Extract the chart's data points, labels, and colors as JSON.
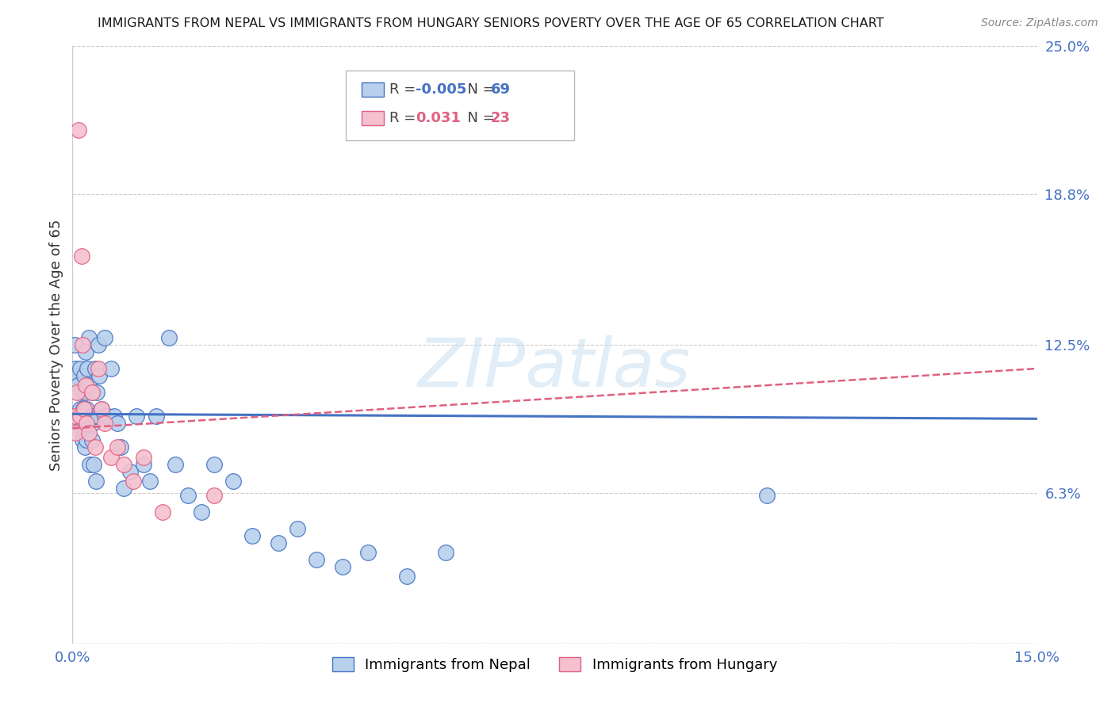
{
  "title": "IMMIGRANTS FROM NEPAL VS IMMIGRANTS FROM HUNGARY SENIORS POVERTY OVER THE AGE OF 65 CORRELATION CHART",
  "source": "Source: ZipAtlas.com",
  "ylabel": "Seniors Poverty Over the Age of 65",
  "legend_label1": "Immigrants from Nepal",
  "legend_label2": "Immigrants from Hungary",
  "R1": "-0.005",
  "N1": "69",
  "R2": "0.031",
  "N2": "23",
  "color1": "#b8d0eb",
  "color2": "#f5c0d0",
  "line_color1": "#4472c4",
  "line_color2": "#e06080",
  "xmin": 0.0,
  "xmax": 0.15,
  "ymin": 0.0,
  "ymax": 0.25,
  "yticks": [
    0.0,
    0.063,
    0.125,
    0.188,
    0.25
  ],
  "ytick_labels": [
    "",
    "6.3%",
    "12.5%",
    "18.8%",
    "25.0%"
  ],
  "xticks": [
    0.0,
    0.025,
    0.05,
    0.075,
    0.1,
    0.125,
    0.15
  ],
  "xtick_labels": [
    "0.0%",
    "",
    "",
    "",
    "",
    "",
    "15.0%"
  ],
  "nepal_x": [
    0.0003,
    0.0005,
    0.0006,
    0.0008,
    0.001,
    0.001,
    0.0012,
    0.0012,
    0.0014,
    0.0015,
    0.0015,
    0.0016,
    0.0016,
    0.0017,
    0.0018,
    0.0018,
    0.0019,
    0.002,
    0.002,
    0.002,
    0.0021,
    0.0022,
    0.0022,
    0.0023,
    0.0024,
    0.0025,
    0.0026,
    0.0027,
    0.0028,
    0.003,
    0.003,
    0.0032,
    0.0033,
    0.0034,
    0.0035,
    0.0036,
    0.0038,
    0.004,
    0.004,
    0.0042,
    0.0045,
    0.005,
    0.005,
    0.0055,
    0.006,
    0.0065,
    0.007,
    0.0075,
    0.008,
    0.009,
    0.01,
    0.011,
    0.012,
    0.013,
    0.015,
    0.016,
    0.018,
    0.02,
    0.022,
    0.025,
    0.028,
    0.032,
    0.035,
    0.038,
    0.042,
    0.046,
    0.052,
    0.058,
    0.108
  ],
  "nepal_y": [
    0.125,
    0.115,
    0.112,
    0.108,
    0.095,
    0.092,
    0.115,
    0.098,
    0.105,
    0.092,
    0.088,
    0.095,
    0.085,
    0.098,
    0.112,
    0.095,
    0.082,
    0.122,
    0.105,
    0.088,
    0.092,
    0.098,
    0.085,
    0.115,
    0.092,
    0.128,
    0.108,
    0.075,
    0.095,
    0.105,
    0.085,
    0.092,
    0.075,
    0.095,
    0.115,
    0.068,
    0.105,
    0.125,
    0.095,
    0.112,
    0.098,
    0.095,
    0.128,
    0.095,
    0.115,
    0.095,
    0.092,
    0.082,
    0.065,
    0.072,
    0.095,
    0.075,
    0.068,
    0.095,
    0.128,
    0.075,
    0.062,
    0.055,
    0.075,
    0.068,
    0.045,
    0.042,
    0.048,
    0.035,
    0.032,
    0.038,
    0.028,
    0.038,
    0.062
  ],
  "hungary_x": [
    0.0003,
    0.0005,
    0.0007,
    0.001,
    0.0012,
    0.0014,
    0.0016,
    0.0018,
    0.002,
    0.0022,
    0.0025,
    0.003,
    0.0035,
    0.004,
    0.0045,
    0.005,
    0.006,
    0.007,
    0.008,
    0.0095,
    0.011,
    0.014,
    0.022
  ],
  "hungary_y": [
    0.095,
    0.088,
    0.105,
    0.215,
    0.095,
    0.162,
    0.125,
    0.098,
    0.108,
    0.092,
    0.088,
    0.105,
    0.082,
    0.115,
    0.098,
    0.092,
    0.078,
    0.082,
    0.075,
    0.068,
    0.078,
    0.055,
    0.062
  ],
  "trend1_x0": 0.0,
  "trend1_x1": 0.15,
  "trend1_y0": 0.096,
  "trend1_y1": 0.094,
  "trend2_x0": 0.0,
  "trend2_x1": 0.15,
  "trend2_y0": 0.09,
  "trend2_y1": 0.115,
  "marker_size": 200,
  "background_color": "#ffffff",
  "grid_color": "#cccccc",
  "watermark": "ZIPatlas",
  "title_color": "#1a1a1a",
  "source_color": "#888888",
  "axis_label_color": "#333333",
  "right_tick_color": "#4472c4",
  "tick_color": "#4472c4"
}
